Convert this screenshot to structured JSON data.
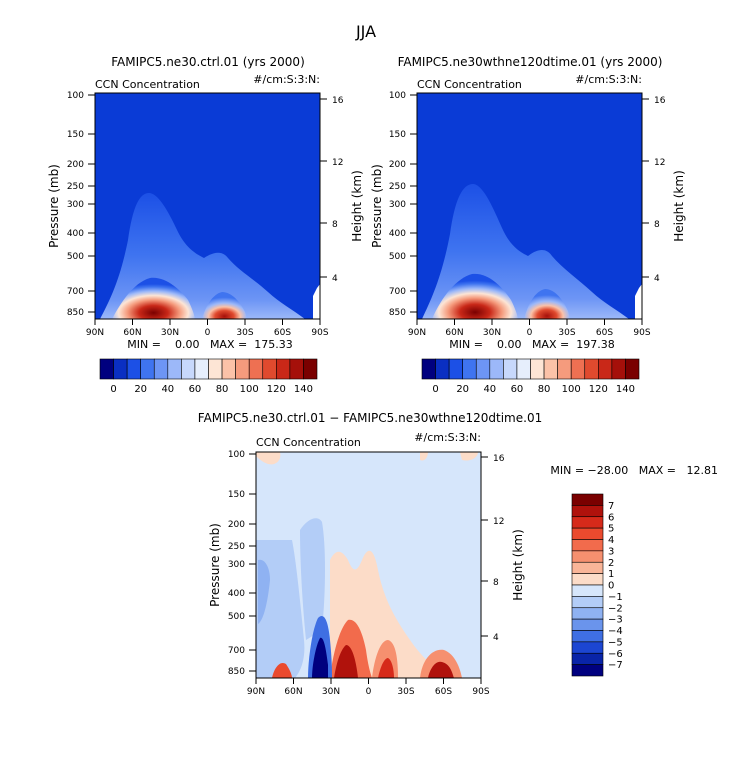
{
  "page_title": "JJA",
  "colors": {
    "background": "#ffffff",
    "field_background": "#0a3bd6",
    "diff_background": "#d6e6fb"
  },
  "chart_data": [
    {
      "type": "contour",
      "title": "FAMIPC5.ne30.ctrl.01 (yrs 2000)",
      "subtitle_left": "CCN Concentration",
      "subtitle_right": "#/cm:S:3:N:",
      "ylabel": "Pressure (mb)",
      "ylabel_right": "Height (km)",
      "xticks": [
        "90N",
        "60N",
        "30N",
        "0",
        "30S",
        "60S",
        "90S"
      ],
      "yticks": [
        "100",
        "150",
        "200",
        "250",
        "300",
        "400",
        "500",
        "700",
        "850"
      ],
      "ylim_mb": [
        100,
        925
      ],
      "height_ticks": [
        "16",
        "12",
        "8",
        "4"
      ],
      "stats": "MIN =    0.00   MAX =  175.33",
      "min": 0.0,
      "max": 175.33,
      "colorbar": {
        "levels": [
          "0",
          "20",
          "40",
          "60",
          "80",
          "100",
          "120",
          "140"
        ],
        "colors": [
          "#00007f",
          "#0a2fc2",
          "#1c50e6",
          "#3f74f0",
          "#6d95f5",
          "#9cb8f9",
          "#c7d8fc",
          "#e6eefc",
          "#fde5d5",
          "#fbc2a8",
          "#f59b7d",
          "#ee7052",
          "#e04a2e",
          "#c92818",
          "#a5100a",
          "#7a0000"
        ]
      },
      "features": [
        {
          "name": "NH midlatitude maximum",
          "lat": 40,
          "peak": 175,
          "top_mb": 280
        },
        {
          "name": "NH tropical maximum",
          "lat": -5,
          "peak": 150,
          "top_mb": 520
        }
      ]
    },
    {
      "type": "contour",
      "title": "FAMIPC5.ne30wthne120dtime.01 (yrs 2000)",
      "subtitle_left": "CCN Concentration",
      "subtitle_right": "#/cm:S:3:N:",
      "ylabel": "Pressure (mb)",
      "ylabel_right": "Height (km)",
      "xticks": [
        "90N",
        "60N",
        "30N",
        "0",
        "30S",
        "60S",
        "90S"
      ],
      "yticks": [
        "100",
        "150",
        "200",
        "250",
        "300",
        "400",
        "500",
        "700",
        "850"
      ],
      "ylim_mb": [
        100,
        925
      ],
      "height_ticks": [
        "16",
        "12",
        "8",
        "4"
      ],
      "stats": "MIN =    0.00   MAX =  197.38",
      "min": 0.0,
      "max": 197.38,
      "colorbar": {
        "levels": [
          "0",
          "20",
          "40",
          "60",
          "80",
          "100",
          "120",
          "140"
        ],
        "colors": [
          "#00007f",
          "#0a2fc2",
          "#1c50e6",
          "#3f74f0",
          "#6d95f5",
          "#9cb8f9",
          "#c7d8fc",
          "#e6eefc",
          "#fde5d5",
          "#fbc2a8",
          "#f59b7d",
          "#ee7052",
          "#e04a2e",
          "#c92818",
          "#a5100a",
          "#7a0000"
        ]
      },
      "features": [
        {
          "name": "NH midlatitude maximum",
          "lat": 40,
          "peak": 197,
          "top_mb": 260
        },
        {
          "name": "NH tropical maximum",
          "lat": -5,
          "peak": 160,
          "top_mb": 500
        }
      ]
    },
    {
      "type": "contour",
      "title": "FAMIPC5.ne30.ctrl.01 − FAMIPC5.ne30wthne120dtime.01",
      "subtitle_left": "CCN Concentration",
      "subtitle_right": "#/cm:S:3:N:",
      "ylabel": "Pressure (mb)",
      "ylabel_right": "Height (km)",
      "xticks": [
        "90N",
        "60N",
        "30N",
        "0",
        "30S",
        "60S",
        "90S"
      ],
      "yticks": [
        "100",
        "150",
        "200",
        "250",
        "300",
        "400",
        "500",
        "700",
        "850"
      ],
      "ylim_mb": [
        100,
        925
      ],
      "height_ticks": [
        "16",
        "12",
        "8",
        "4"
      ],
      "stats": "MIN = −28.00   MAX =   12.81",
      "min": -28.0,
      "max": 12.81,
      "colorbar": {
        "levels": [
          "7",
          "6",
          "5",
          "4",
          "3",
          "2",
          "1",
          "0",
          "−1",
          "−2",
          "−3",
          "−4",
          "−5",
          "−6",
          "−7"
        ],
        "colors": [
          "#7a0000",
          "#b0120c",
          "#d62a1a",
          "#ea4a2e",
          "#f26b4c",
          "#f6906f",
          "#f9b598",
          "#fcdcc8",
          "#d6e6fb",
          "#b3cdf7",
          "#8fb2f2",
          "#6a94ec",
          "#3f6fe3",
          "#1c46d2",
          "#0924a8",
          "#00007f"
        ]
      },
      "features": [
        {
          "name": "negative core",
          "lat": 35,
          "value": -28,
          "level_mb": 800
        },
        {
          "name": "positive band",
          "lat": 10,
          "value": 7,
          "level_mb": 780
        },
        {
          "name": "positive band",
          "lat": -60,
          "value": 7,
          "level_mb": 860
        }
      ]
    }
  ]
}
